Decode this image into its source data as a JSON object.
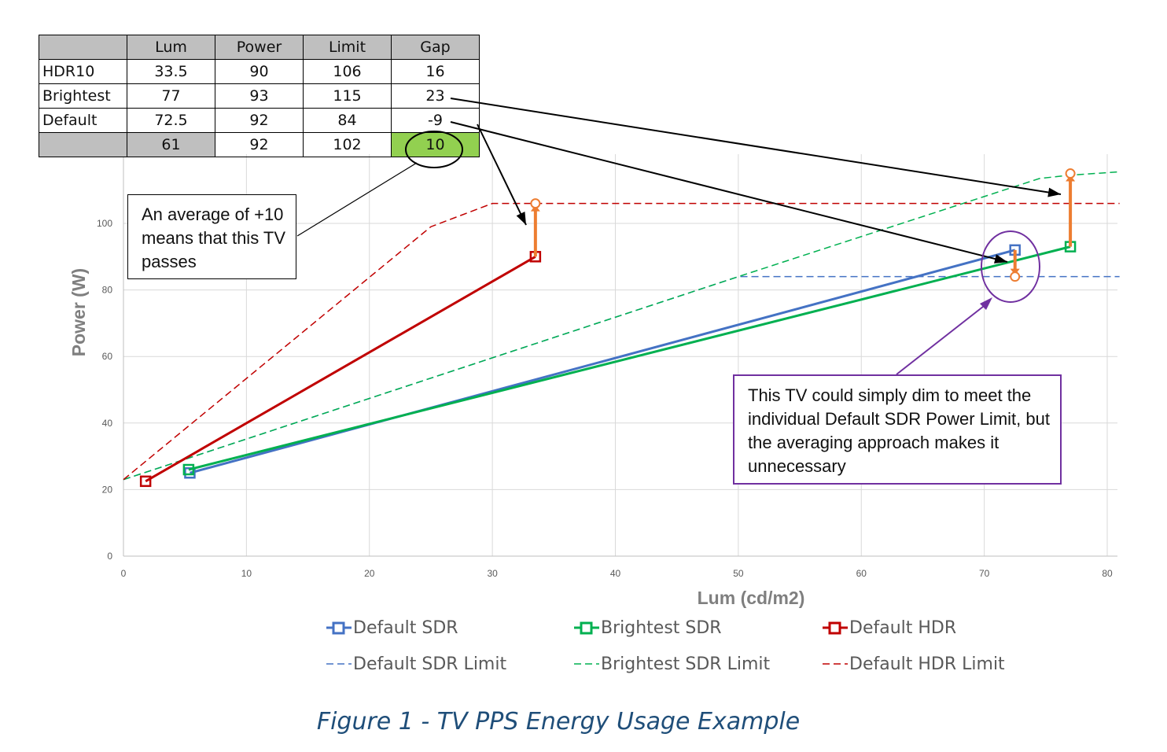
{
  "table": {
    "headers": [
      "",
      "Lum",
      "Power",
      "Limit",
      "Gap"
    ],
    "rows": [
      [
        "HDR10",
        "33.5",
        "90",
        "106",
        "16"
      ],
      [
        "Brightest",
        "77",
        "93",
        "115",
        "23"
      ],
      [
        "Default",
        "72.5",
        "92",
        "84",
        "-9"
      ],
      [
        "",
        "61",
        "92",
        "102",
        "10"
      ]
    ]
  },
  "callout_average": "An average of +10 means that this TV passes",
  "callout_dim": "This TV could simply dim to meet the individual Default SDR Power Limit, but the averaging approach makes it unnecessary",
  "caption": "Figure 1 - TV PPS Energy Usage Example",
  "colors": {
    "default_sdr": "#4472c4",
    "brightest_sdr": "#00b050",
    "default_hdr": "#c00000",
    "limit_arrow": "#ed7d31",
    "grid": "#d9d9d9",
    "callout_border": "#7030a0",
    "gap_highlight": "#92d050"
  },
  "chart_data": {
    "type": "line",
    "xlabel": "Lum (cd/m2)",
    "ylabel": "Power (W)",
    "xlim": [
      0,
      81
    ],
    "ylim": [
      0,
      120
    ],
    "x_ticks": [
      0,
      10,
      20,
      30,
      40,
      50,
      60,
      70,
      80
    ],
    "y_ticks": [
      0,
      20,
      40,
      60,
      80,
      100
    ],
    "grid": true,
    "legend_position": "bottom",
    "series": [
      {
        "name": "Default SDR",
        "style": "solid",
        "marker": "square",
        "color": "#4472c4",
        "points": [
          [
            5.4,
            25
          ],
          [
            72.5,
            92
          ]
        ]
      },
      {
        "name": "Brightest SDR",
        "style": "solid",
        "marker": "square",
        "color": "#00b050",
        "points": [
          [
            5.3,
            26
          ],
          [
            77,
            93
          ]
        ]
      },
      {
        "name": "Default HDR",
        "style": "solid",
        "marker": "square",
        "color": "#c00000",
        "points": [
          [
            1.8,
            22.5
          ],
          [
            33.5,
            90
          ]
        ]
      },
      {
        "name": "Default SDR Limit",
        "style": "dashed",
        "color": "#4472c4",
        "points": [
          [
            0,
            23
          ],
          [
            50,
            84
          ],
          [
            81,
            84
          ]
        ]
      },
      {
        "name": "Brightest SDR Limit",
        "style": "dashed",
        "color": "#00b050",
        "points": [
          [
            0,
            23
          ],
          [
            50,
            84
          ],
          [
            74.5,
            113.5
          ],
          [
            77,
            114.5
          ],
          [
            81,
            115.5
          ]
        ]
      },
      {
        "name": "Default HDR Limit",
        "style": "dashed",
        "color": "#c00000",
        "points": [
          [
            0,
            23
          ],
          [
            25,
            99
          ],
          [
            30,
            106
          ],
          [
            81,
            106
          ]
        ]
      }
    ],
    "gap_arrows": [
      {
        "x": 33.5,
        "from": 90,
        "to": 106
      },
      {
        "x": 72.5,
        "from": 92,
        "to": 84
      },
      {
        "x": 77,
        "from": 93,
        "to": 115
      }
    ]
  }
}
